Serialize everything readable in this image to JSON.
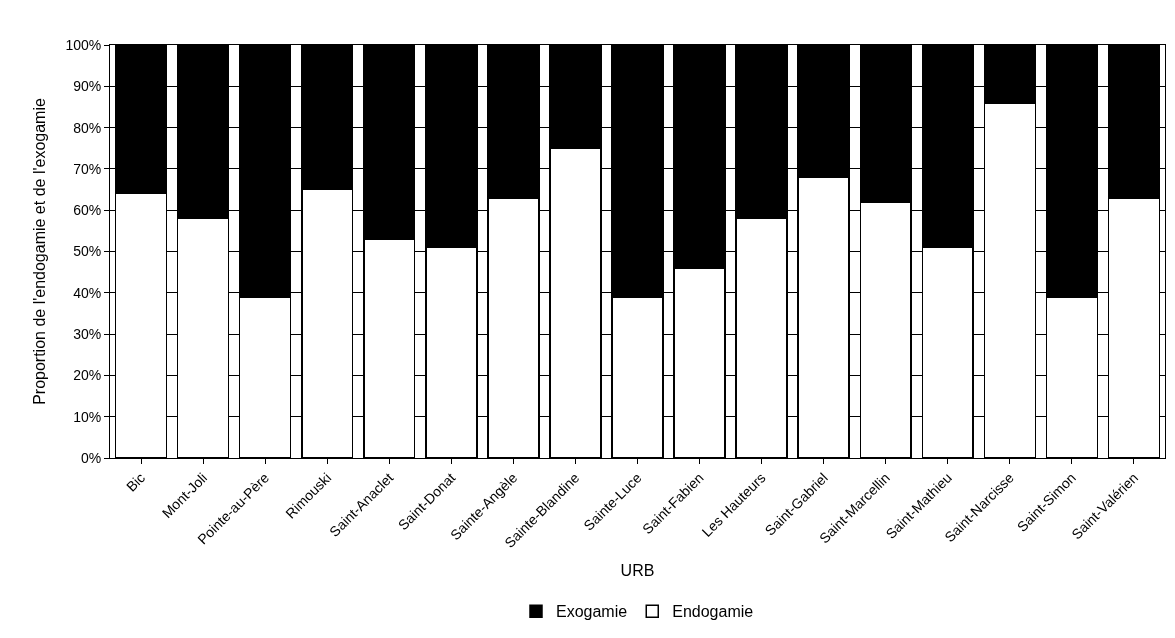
{
  "chart_data": {
    "type": "bar",
    "stacked": true,
    "xlabel": "URB",
    "ylabel": "Proportion de l'endogamie et de l'exogamie",
    "categories": [
      "Bic",
      "Mont-Joli",
      "Pointe-au-Père",
      "Rimouski",
      "Saint-Anaclet",
      "Saint-Donat",
      "Sainte-Angèle",
      "Sainte-Blandine",
      "Sainte-Luce",
      "Saint-Fabien",
      "Les Hauteurs",
      "Saint-Gabriel",
      "Saint-Marcellin",
      "Saint-Mathieu",
      "Saint-Narcisse",
      "Saint-Simon",
      "Saint-Valérien"
    ],
    "series": [
      {
        "name": "Endogamie",
        "color": "#ffffff",
        "values": [
          64,
          58,
          39,
          65,
          53,
          51,
          63,
          75,
          39,
          46,
          58,
          68,
          62,
          51,
          86,
          39,
          63
        ]
      },
      {
        "name": "Exogamie",
        "color": "#000000",
        "values": [
          36,
          42,
          61,
          35,
          47,
          49,
          37,
          25,
          61,
          54,
          42,
          32,
          38,
          49,
          14,
          61,
          37
        ]
      }
    ],
    "ylim": [
      0,
      100
    ],
    "yticks": [
      {
        "value": 0,
        "label": "0%"
      },
      {
        "value": 10,
        "label": "10%"
      },
      {
        "value": 20,
        "label": "20%"
      },
      {
        "value": 30,
        "label": "30%"
      },
      {
        "value": 40,
        "label": "40%"
      },
      {
        "value": 50,
        "label": "50%"
      },
      {
        "value": 60,
        "label": "60%"
      },
      {
        "value": 70,
        "label": "70%"
      },
      {
        "value": 80,
        "label": "80%"
      },
      {
        "value": 90,
        "label": "90%"
      },
      {
        "value": 100,
        "label": "100%"
      }
    ],
    "grid": "y",
    "legend": "bottom"
  }
}
